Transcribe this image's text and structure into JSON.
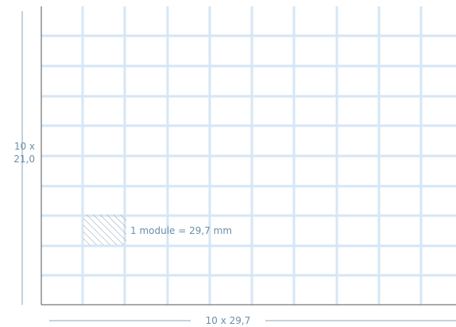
{
  "dimensions": {
    "height_line1": "10 x",
    "height_line2": "21,0",
    "width": "10 x 29,7"
  },
  "module": {
    "label": "1 module = 29,7 mm"
  },
  "grid": {
    "columns": 10,
    "rows": 10
  },
  "colors": {
    "grid_line": "#d6e6f4",
    "frame": "#555555",
    "dimension": "#6a8fa8",
    "hatch": "#8aa4b8"
  }
}
